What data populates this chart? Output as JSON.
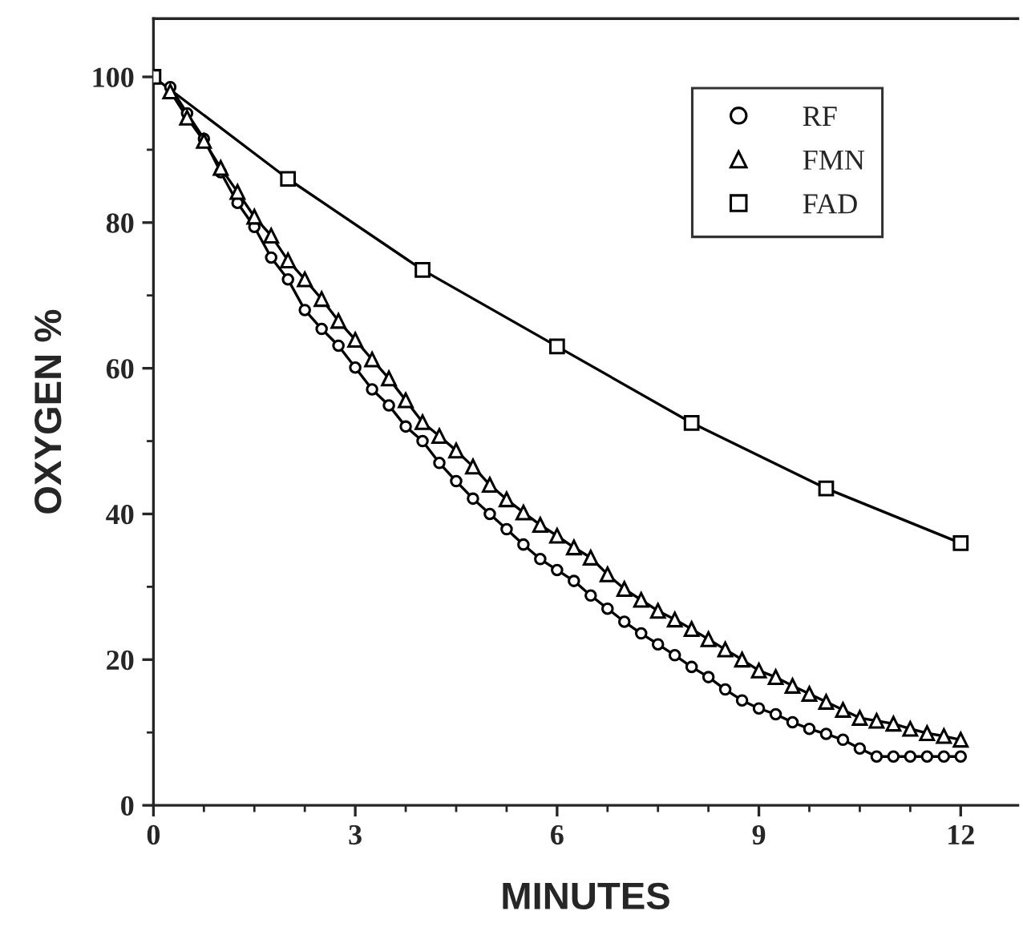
{
  "chart_data": {
    "type": "line",
    "xlabel": "MINUTES",
    "ylabel": "OXYGEN %",
    "xlim": [
      0,
      12.85
    ],
    "ylim": [
      0,
      108
    ],
    "xticks": [
      0,
      {
        "value": 0.75,
        "label": null
      },
      {
        "value": 1.5,
        "label": null
      },
      {
        "value": 2.25,
        "label": null
      },
      3,
      {
        "value": 3.75,
        "label": null
      },
      {
        "value": 4.5,
        "label": null
      },
      {
        "value": 5.25,
        "label": null
      },
      6,
      {
        "value": 6.75,
        "label": null
      },
      {
        "value": 7.5,
        "label": null
      },
      {
        "value": 8.25,
        "label": null
      },
      9,
      {
        "value": 9.75,
        "label": null
      },
      {
        "value": 10.5,
        "label": null
      },
      {
        "value": 11.25,
        "label": null
      },
      12
    ],
    "yticks": [
      0,
      {
        "value": 10,
        "label": null
      },
      20,
      {
        "value": 30,
        "label": null
      },
      40,
      {
        "value": 50,
        "label": null
      },
      60,
      {
        "value": 70,
        "label": null
      },
      80,
      {
        "value": 90,
        "label": null
      },
      100
    ],
    "grid": false,
    "legend": "top right",
    "line_style": "solid",
    "series": [
      {
        "name": "RF",
        "color": "#000000",
        "marker": "circle",
        "x": [
          0.25,
          0.5,
          0.75,
          1,
          1.25,
          1.5,
          1.75,
          2,
          2.25,
          2.5,
          2.75,
          3,
          3.25,
          3.5,
          3.75,
          4,
          4.25,
          4.5,
          4.75,
          5,
          5.25,
          5.5,
          5.75,
          6,
          6.25,
          6.5,
          6.75,
          7,
          7.25,
          7.5,
          7.75,
          8,
          8.25,
          8.5,
          8.75,
          9,
          9.25,
          9.5,
          9.75,
          10,
          10.25,
          10.5,
          10.75,
          11,
          11.25,
          11.5,
          11.75,
          12
        ],
        "values": [
          98.6,
          95,
          91.5,
          86.9,
          82.7,
          79.4,
          75.2,
          72.2,
          68,
          65.4,
          63.1,
          60.1,
          57.1,
          54.9,
          52,
          50,
          47,
          44.5,
          42.1,
          40,
          37.9,
          35.8,
          33.8,
          32.3,
          30.8,
          28.8,
          27,
          25.2,
          23.6,
          22.1,
          20.6,
          19,
          17.6,
          15.9,
          14.4,
          13.3,
          12.5,
          11.4,
          10.5,
          9.8,
          9,
          7.8,
          6.7,
          6.7,
          6.7,
          6.7,
          6.7,
          6.7
        ]
      },
      {
        "name": "FMN",
        "color": "#000000",
        "marker": "triangle",
        "x": [
          0.25,
          0.5,
          0.75,
          1,
          1.25,
          1.5,
          1.75,
          2,
          2.25,
          2.5,
          2.75,
          3,
          3.25,
          3.5,
          3.75,
          4,
          4.25,
          4.5,
          4.75,
          5,
          5.25,
          5.5,
          5.75,
          6,
          6.25,
          6.5,
          6.75,
          7,
          7.25,
          7.5,
          7.75,
          8,
          8.25,
          8.5,
          8.75,
          9,
          9.25,
          9.5,
          9.75,
          10,
          10.25,
          10.5,
          10.75,
          11,
          11.25,
          11.5,
          11.75,
          12
        ],
        "values": [
          98,
          94.4,
          91.2,
          87.5,
          84.2,
          80.8,
          78.2,
          74.8,
          72.2,
          69.5,
          66.5,
          63.9,
          61.2,
          58.6,
          55.6,
          52.6,
          50.7,
          48.7,
          46.5,
          44,
          42,
          40.2,
          38.5,
          37,
          35.4,
          34,
          31.7,
          29.7,
          28.2,
          26.7,
          25.5,
          24.2,
          22.8,
          21.4,
          20,
          18.5,
          17.6,
          16.4,
          15.3,
          14.2,
          13.1,
          12,
          11.6,
          11.2,
          10.5,
          9.9,
          9.5,
          9
        ]
      },
      {
        "name": "FAD",
        "color": "#000000",
        "marker": "square",
        "x": [
          0,
          2,
          4,
          6,
          8,
          10,
          12
        ],
        "values": [
          100,
          86,
          73.5,
          63,
          52.5,
          43.5,
          36
        ]
      }
    ]
  }
}
